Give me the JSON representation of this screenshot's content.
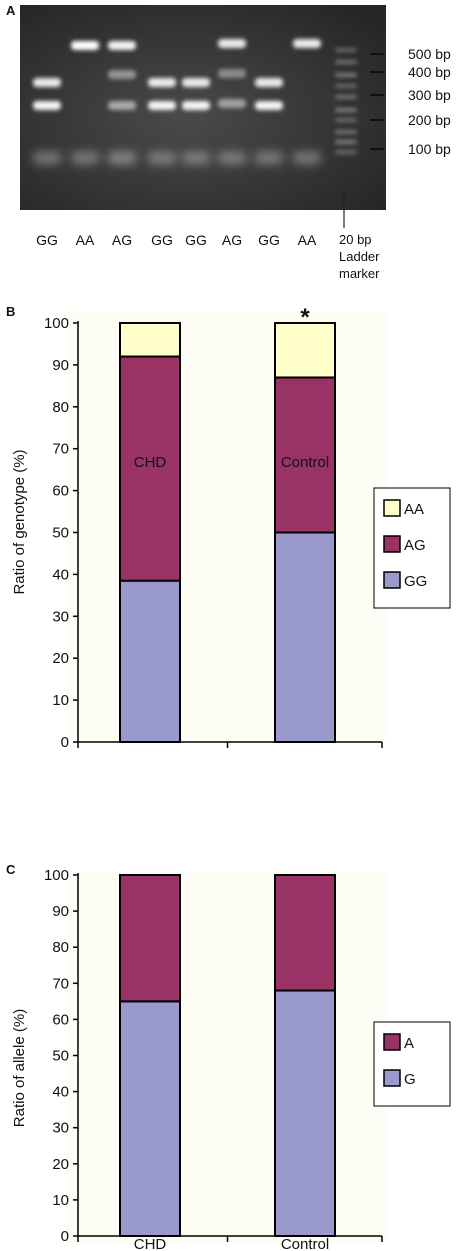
{
  "panel_a": {
    "letter": "A",
    "lane_labels": [
      "GG",
      "AA",
      "AG",
      "GG",
      "GG",
      "AG",
      "GG",
      "AA"
    ],
    "ladder_label_lines": [
      "20 bp",
      "Ladder",
      "marker"
    ],
    "size_markers": [
      "500 bp",
      "400 bp",
      "300 bp",
      "200 bp",
      "100 bp"
    ],
    "colors": {
      "gel": "#3a3a3a",
      "band": "#ffffff"
    }
  },
  "chart_data": [
    {
      "type": "bar",
      "stacked": true,
      "panel_letter": "B",
      "categories": [
        "CHD",
        "Control"
      ],
      "series": [
        {
          "name": "GG",
          "values": [
            38.5,
            50
          ],
          "color": "#9999cc"
        },
        {
          "name": "AG",
          "values": [
            53.5,
            37
          ],
          "color": "#993366"
        },
        {
          "name": "AA",
          "values": [
            8,
            13
          ],
          "color": "#ffffcc"
        }
      ],
      "ylabel": "Ratio of genotype (%)",
      "ylim": [
        0,
        100
      ],
      "yticks": [
        0,
        10,
        20,
        30,
        40,
        50,
        60,
        70,
        80,
        90,
        100
      ],
      "annotations": [
        {
          "category": "Control",
          "text": "*"
        }
      ],
      "legend_position": "right",
      "grid": false,
      "plot_background": "#fdfdf6"
    },
    {
      "type": "bar",
      "stacked": true,
      "panel_letter": "C",
      "categories": [
        "CHD",
        "Control"
      ],
      "series": [
        {
          "name": "G",
          "values": [
            65,
            68
          ],
          "color": "#9999cc"
        },
        {
          "name": "A",
          "values": [
            35,
            32
          ],
          "color": "#993366"
        }
      ],
      "ylabel": "Ratio of allele (%)",
      "ylim": [
        0,
        100
      ],
      "yticks": [
        0,
        10,
        20,
        30,
        40,
        50,
        60,
        70,
        80,
        90,
        100
      ],
      "legend_position": "right",
      "grid": false,
      "plot_background": "#fdfdf6"
    }
  ]
}
